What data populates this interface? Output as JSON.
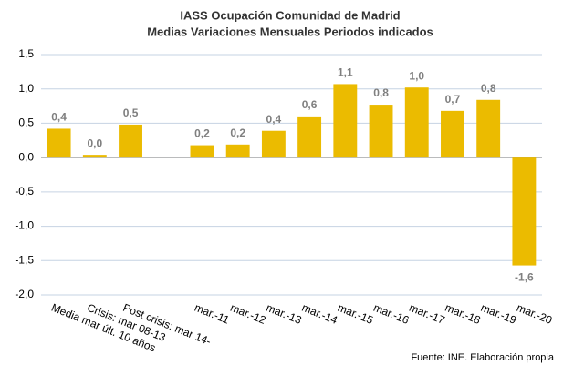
{
  "chart_data": {
    "type": "bar",
    "title": "IASS Ocupación Comunidad de Madrid",
    "subtitle": "Medias Variaciones Mensuales  Periodos indicados",
    "source": "Fuente: INE. Elaboración propia",
    "categories": [
      "Media mar últ. 10 años",
      "Crisis: mar 08-13",
      "Post crisis: mar 14-",
      null,
      "mar.-11",
      "mar.-12",
      "mar.-13",
      "mar.-14",
      "mar.-15",
      "mar.-16",
      "mar.-17",
      "mar.-18",
      "mar.-19",
      "mar.-20"
    ],
    "values": [
      0.42,
      0.04,
      0.48,
      null,
      0.18,
      0.19,
      0.39,
      0.6,
      1.07,
      0.77,
      1.02,
      0.68,
      0.84,
      -1.57
    ],
    "value_labels": [
      "0,4",
      "0,0",
      "0,5",
      null,
      "0,2",
      "0,2",
      "0,4",
      "0,6",
      "1,1",
      "0,8",
      "1,0",
      "0,7",
      "0,8",
      "-1,6"
    ],
    "color": "#ebbb00",
    "ylim": [
      -2.0,
      1.5
    ],
    "yticks": [
      {
        "value": -2.0,
        "label": "-2,0"
      },
      {
        "value": -1.5,
        "label": "-1,5"
      },
      {
        "value": -1.0,
        "label": "-1,0"
      },
      {
        "value": -0.5,
        "label": "-0,5"
      },
      {
        "value": 0.0,
        "label": "0,0"
      },
      {
        "value": 0.5,
        "label": "0,5"
      },
      {
        "value": 1.0,
        "label": "1,0"
      },
      {
        "value": 1.5,
        "label": "1,5"
      }
    ],
    "grid": true
  }
}
